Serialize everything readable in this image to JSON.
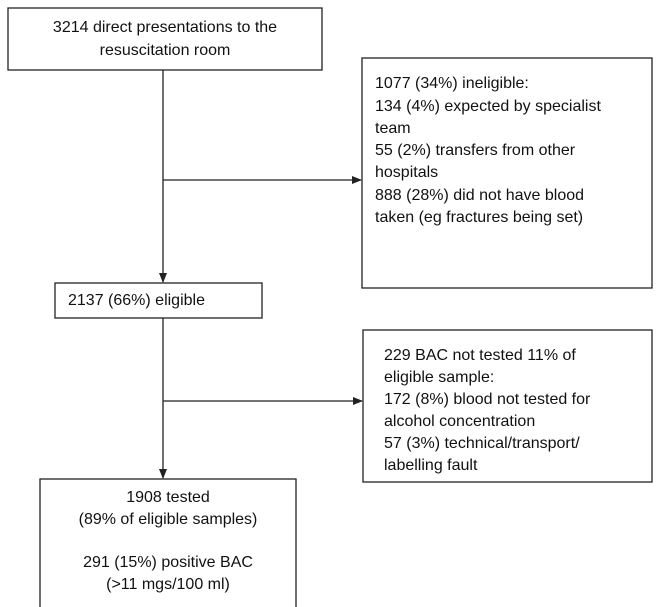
{
  "nodes": [
    {
      "lines": [
        "3214 direct presentations to the",
        "resuscitation room"
      ]
    },
    {
      "lines": [
        "1077 (34%) ineligible:",
        "134 (4%) expected by specialist",
        "team",
        "55 (2%) transfers from other",
        "hospitals",
        "888 (28%) did not have blood",
        "taken (eg fractures being set)"
      ]
    },
    {
      "lines": [
        "2137 (66%) eligible"
      ]
    },
    {
      "lines": [
        "229 BAC not tested 11% of",
        "eligible sample:",
        "172 (8%) blood not tested for",
        "alcohol concentration",
        "57 (3%) technical/transport/",
        "labelling  fault"
      ]
    },
    {
      "lines": [
        "1908 tested",
        "(89% of eligible samples)",
        "291 (15%) positive BAC",
        "(>11 mgs/100 ml)"
      ]
    }
  ]
}
